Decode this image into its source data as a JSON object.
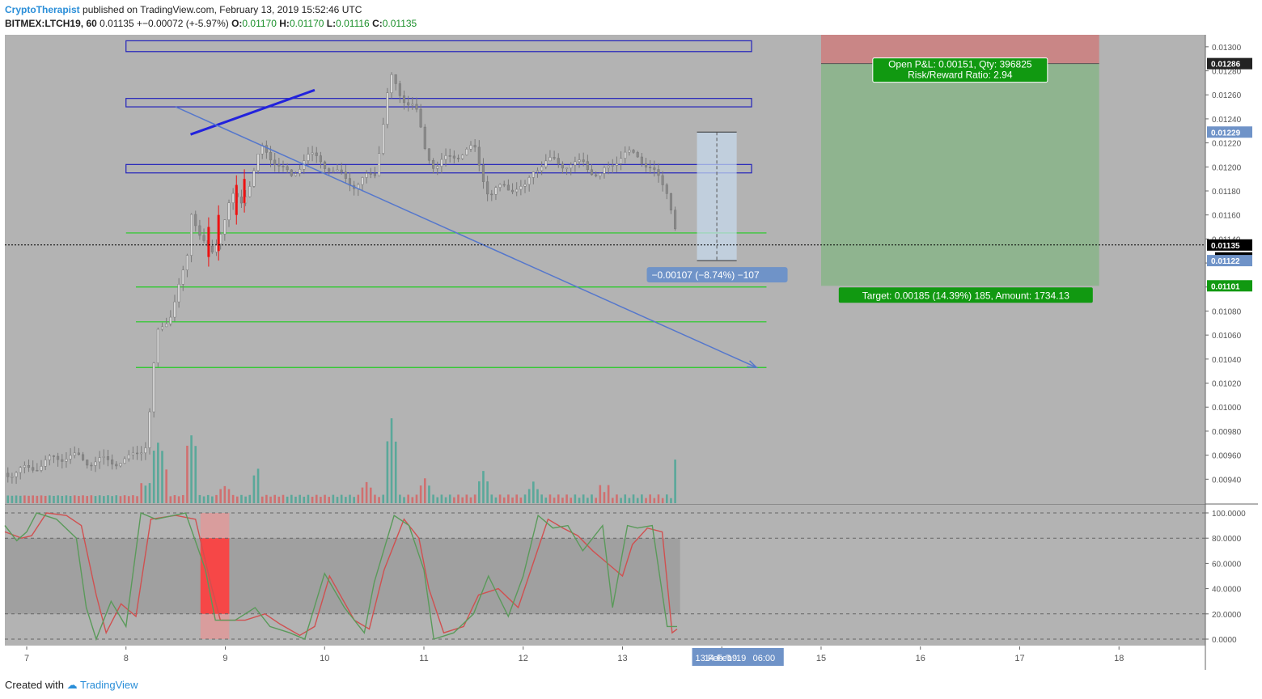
{
  "header": {
    "author": "CryptoTherapist",
    "published_text": "published on TradingView.com, February 13, 2019 15:52:46 UTC",
    "symbol": "BITMEX:LTCH19, 60",
    "last": "0.01135",
    "change": "+−0.00072 (+-5.97%)",
    "o_label": "O:",
    "o": "0.01170",
    "h_label": "H:",
    "h": "0.01170",
    "l_label": "L:",
    "l": "0.01116",
    "c_label": "C:",
    "c": "0.01135"
  },
  "footer": {
    "created_with": "Created with",
    "brand": "TradingView"
  },
  "colors": {
    "bg": "#b3b3b3",
    "up": "#9a9a9a",
    "down_red": "#ee1111",
    "vol_teal": "#5aa89a",
    "vol_red": "#d07070",
    "stoch_k": "#5a9a5a",
    "stoch_d": "#d05050",
    "green_level": "#22cc22",
    "blue_box": "#2222bb",
    "profit": "#8fb48f",
    "loss": "#c98686"
  },
  "chart_data": {
    "type": "candlestick",
    "symbol": "BITMEX:LTCH19",
    "interval": "60",
    "ylim": [
      0.0092,
      0.0131
    ],
    "y_ticks": [
      "0.01300",
      "0.01280",
      "0.01260",
      "0.01240",
      "0.01220",
      "0.01200",
      "0.01180",
      "0.01160",
      "0.01140",
      "0.01120",
      "0.01100",
      "0.01080",
      "0.01060",
      "0.01040",
      "0.01020",
      "0.01000",
      "0.00980",
      "0.00960",
      "0.00940"
    ],
    "x_ticks": [
      "7",
      "8",
      "9",
      "10",
      "11",
      "12",
      "13",
      "14",
      "15",
      "16",
      "17",
      "18"
    ],
    "x_day_range": [
      6.78,
      18.87
    ],
    "price_close_path": [
      [
        6.78,
        0.00945
      ],
      [
        7.0,
        0.00948
      ],
      [
        7.2,
        0.00955
      ],
      [
        7.4,
        0.0096
      ],
      [
        7.6,
        0.00955
      ],
      [
        7.8,
        0.00955
      ],
      [
        8.0,
        0.00955
      ],
      [
        8.2,
        0.0097
      ],
      [
        8.3,
        0.0106
      ],
      [
        8.45,
        0.0108
      ],
      [
        8.6,
        0.0112
      ],
      [
        8.65,
        0.01165
      ],
      [
        8.75,
        0.0114
      ],
      [
        8.85,
        0.01125
      ],
      [
        8.95,
        0.0115
      ],
      [
        9.05,
        0.01175
      ],
      [
        9.15,
        0.0117
      ],
      [
        9.25,
        0.0119
      ],
      [
        9.35,
        0.01215
      ],
      [
        9.5,
        0.01205
      ],
      [
        9.65,
        0.0119
      ],
      [
        9.8,
        0.0121
      ],
      [
        9.95,
        0.01205
      ],
      [
        10.1,
        0.01195
      ],
      [
        10.3,
        0.01185
      ],
      [
        10.5,
        0.01195
      ],
      [
        10.65,
        0.01275
      ],
      [
        10.75,
        0.0126
      ],
      [
        10.9,
        0.0125
      ],
      [
        11.0,
        0.01215
      ],
      [
        11.1,
        0.012
      ],
      [
        11.3,
        0.0121
      ],
      [
        11.5,
        0.01215
      ],
      [
        11.65,
        0.01175
      ],
      [
        11.8,
        0.01185
      ],
      [
        12.0,
        0.0118
      ],
      [
        12.1,
        0.012
      ],
      [
        12.3,
        0.01205
      ],
      [
        12.5,
        0.012
      ],
      [
        12.6,
        0.01205
      ],
      [
        12.75,
        0.0119
      ],
      [
        12.9,
        0.01205
      ],
      [
        13.0,
        0.0121
      ],
      [
        13.15,
        0.0121
      ],
      [
        13.3,
        0.01195
      ],
      [
        13.45,
        0.0118
      ],
      [
        13.55,
        0.01135
      ]
    ],
    "volume_path": [
      [
        8.2,
        0.3
      ],
      [
        8.3,
        0.9
      ],
      [
        8.35,
        0.5
      ],
      [
        8.65,
        1.0
      ],
      [
        9.0,
        0.25
      ],
      [
        9.3,
        0.5
      ],
      [
        10.4,
        0.3
      ],
      [
        10.65,
        1.2
      ],
      [
        11.0,
        0.35
      ],
      [
        11.6,
        0.45
      ],
      [
        12.1,
        0.3
      ],
      [
        12.8,
        0.25
      ],
      [
        13.55,
        0.6
      ]
    ],
    "stochastic": {
      "ylim": [
        0,
        100
      ],
      "y_ticks": [
        "100.0000",
        "80.0000",
        "60.0000",
        "40.0000",
        "20.0000",
        "0.0000"
      ],
      "bands": [
        20,
        80
      ],
      "k_path": [
        [
          6.78,
          90
        ],
        [
          6.9,
          78
        ],
        [
          7.0,
          85
        ],
        [
          7.1,
          100
        ],
        [
          7.3,
          95
        ],
        [
          7.5,
          80
        ],
        [
          7.6,
          25
        ],
        [
          7.7,
          0
        ],
        [
          7.85,
          30
        ],
        [
          8.0,
          10
        ],
        [
          8.15,
          100
        ],
        [
          8.3,
          95
        ],
        [
          8.6,
          100
        ],
        [
          8.8,
          55
        ],
        [
          8.9,
          15
        ],
        [
          9.1,
          15
        ],
        [
          9.3,
          25
        ],
        [
          9.45,
          10
        ],
        [
          9.65,
          5
        ],
        [
          9.8,
          0
        ],
        [
          10.0,
          52
        ],
        [
          10.2,
          25
        ],
        [
          10.4,
          5
        ],
        [
          10.5,
          45
        ],
        [
          10.7,
          98
        ],
        [
          10.85,
          90
        ],
        [
          11.0,
          55
        ],
        [
          11.1,
          0
        ],
        [
          11.3,
          5
        ],
        [
          11.5,
          20
        ],
        [
          11.65,
          50
        ],
        [
          11.85,
          18
        ],
        [
          12.0,
          50
        ],
        [
          12.15,
          98
        ],
        [
          12.3,
          88
        ],
        [
          12.45,
          90
        ],
        [
          12.6,
          70
        ],
        [
          12.8,
          90
        ],
        [
          12.9,
          25
        ],
        [
          13.05,
          90
        ],
        [
          13.15,
          88
        ],
        [
          13.3,
          90
        ],
        [
          13.45,
          10
        ],
        [
          13.55,
          10
        ]
      ],
      "d_path": [
        [
          6.78,
          85
        ],
        [
          6.95,
          80
        ],
        [
          7.05,
          82
        ],
        [
          7.2,
          100
        ],
        [
          7.4,
          98
        ],
        [
          7.55,
          90
        ],
        [
          7.7,
          35
        ],
        [
          7.8,
          5
        ],
        [
          7.95,
          28
        ],
        [
          8.1,
          18
        ],
        [
          8.25,
          95
        ],
        [
          8.5,
          98
        ],
        [
          8.7,
          95
        ],
        [
          8.85,
          45
        ],
        [
          8.95,
          15
        ],
        [
          9.2,
          15
        ],
        [
          9.4,
          20
        ],
        [
          9.55,
          12
        ],
        [
          9.75,
          3
        ],
        [
          9.9,
          10
        ],
        [
          10.05,
          50
        ],
        [
          10.3,
          15
        ],
        [
          10.45,
          8
        ],
        [
          10.6,
          55
        ],
        [
          10.8,
          95
        ],
        [
          10.95,
          80
        ],
        [
          11.05,
          40
        ],
        [
          11.2,
          5
        ],
        [
          11.4,
          10
        ],
        [
          11.55,
          35
        ],
        [
          11.75,
          40
        ],
        [
          11.95,
          25
        ],
        [
          12.1,
          60
        ],
        [
          12.25,
          95
        ],
        [
          12.4,
          88
        ],
        [
          12.55,
          82
        ],
        [
          12.7,
          70
        ],
        [
          12.85,
          60
        ],
        [
          13.0,
          50
        ],
        [
          13.1,
          75
        ],
        [
          13.25,
          88
        ],
        [
          13.4,
          85
        ],
        [
          13.5,
          5
        ],
        [
          13.55,
          8
        ]
      ]
    },
    "levels": {
      "blue_boxes": [
        [
          0.01296,
          0.01305
        ],
        [
          0.0125,
          0.01257
        ],
        [
          0.01195,
          0.01202
        ]
      ],
      "green_lines": [
        0.01145,
        0.011,
        0.01071,
        0.01033
      ]
    },
    "position": {
      "x_range": [
        15.0,
        17.8
      ],
      "entry": 0.01286,
      "stop": 0.0131,
      "target": 0.01101,
      "pnl_label": "Open P&L: 0.00151, Qty: 396825",
      "rr_label": "Risk/Reward Ratio: 2.94",
      "target_label": "Target: 0.00185 (14.39%) 185, Amount: 1734.13"
    },
    "measure": {
      "x_range": [
        13.75,
        14.15
      ],
      "from": 0.01229,
      "to": 0.01122,
      "label": "−0.00107 (−8.74%) −107"
    },
    "trend_lines": {
      "up": {
        "from": [
          8.65,
          0.01227
        ],
        "to": [
          9.9,
          0.01264
        ]
      },
      "down_arrow": {
        "from": [
          8.5,
          0.0125
        ],
        "to": [
          14.35,
          0.01033
        ]
      }
    },
    "price_labels": {
      "p1286": "0.01286",
      "p1229": "0.01229",
      "p1135": "0.01135",
      "countdown": "07:14",
      "p1122": "0.01122",
      "p1101": "0.01101"
    },
    "x_highlight_labels": [
      "13 Feb '19",
      "14 Feb '19",
      "06:00"
    ],
    "red_candles": [
      [
        8.82,
        0.0115,
        0.01125
      ],
      [
        8.92,
        0.0116,
        0.0113
      ],
      [
        9.1,
        0.01185,
        0.0116
      ],
      [
        9.18,
        0.0119,
        0.0117
      ]
    ]
  }
}
